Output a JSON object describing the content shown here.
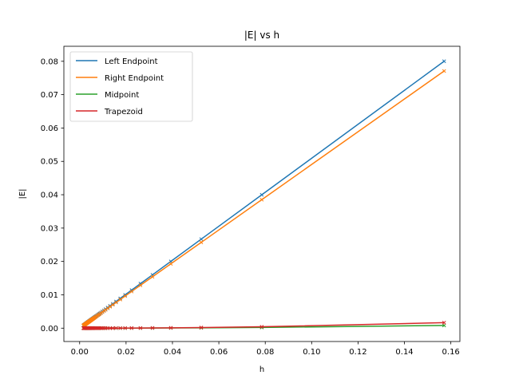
{
  "chart_data": {
    "type": "line",
    "title": "|E| vs h",
    "xlabel": "h",
    "ylabel": "|E|",
    "xlim": [
      -0.0068,
      0.1639
    ],
    "ylim": [
      -0.004,
      0.0845
    ],
    "xticks": [
      0.0,
      0.02,
      0.04,
      0.06,
      0.08,
      0.1,
      0.12,
      0.14,
      0.16
    ],
    "xtick_labels": [
      "0.00",
      "0.02",
      "0.04",
      "0.06",
      "0.08",
      "0.10",
      "0.12",
      "0.14",
      "0.16"
    ],
    "yticks": [
      0.0,
      0.01,
      0.02,
      0.03,
      0.04,
      0.05,
      0.06,
      0.07,
      0.08
    ],
    "ytick_labels": [
      "0.00",
      "0.01",
      "0.02",
      "0.03",
      "0.04",
      "0.05",
      "0.06",
      "0.07",
      "0.08"
    ],
    "grid": false,
    "legend_position": "upper-left",
    "marker": "x",
    "x": [
      0.1571,
      0.0785,
      0.0524,
      0.0393,
      0.0314,
      0.0262,
      0.0224,
      0.0196,
      0.0175,
      0.0157,
      0.0143,
      0.0131,
      0.0121,
      0.0112,
      0.0105,
      0.0098,
      0.0092,
      0.0087,
      0.0083,
      0.0079,
      0.0075,
      0.0071,
      0.0068,
      0.0065,
      0.0063,
      0.006,
      0.0058,
      0.0056,
      0.0054,
      0.0052,
      0.0051,
      0.0049,
      0.0048,
      0.0046,
      0.0045,
      0.0044,
      0.0042,
      0.0041,
      0.004,
      0.0039,
      0.0038,
      0.0037,
      0.0036,
      0.0035,
      0.0034,
      0.0033,
      0.0032,
      0.0031,
      0.003,
      0.0029,
      0.0028,
      0.0027,
      0.0026,
      0.0025,
      0.0024,
      0.0023,
      0.0022,
      0.0021,
      0.002,
      0.0019,
      0.0018,
      0.0017,
      0.0016
    ],
    "series": [
      {
        "name": "Left Endpoint",
        "color": "#1f77b4",
        "slope": 0.5093,
        "offset": 0.0
      },
      {
        "name": "Right Endpoint",
        "color": "#ff7f0e",
        "slope": 0.4907,
        "offset": 0.0
      },
      {
        "name": "Midpoint",
        "color": "#2ca02c",
        "slope": 0.0052,
        "power": 2,
        "offset": 0.0
      },
      {
        "name": "Trapezoid",
        "color": "#d62728",
        "slope": 0.0105,
        "power": 2,
        "offset": 0.0
      }
    ],
    "values_note_free": true
  }
}
